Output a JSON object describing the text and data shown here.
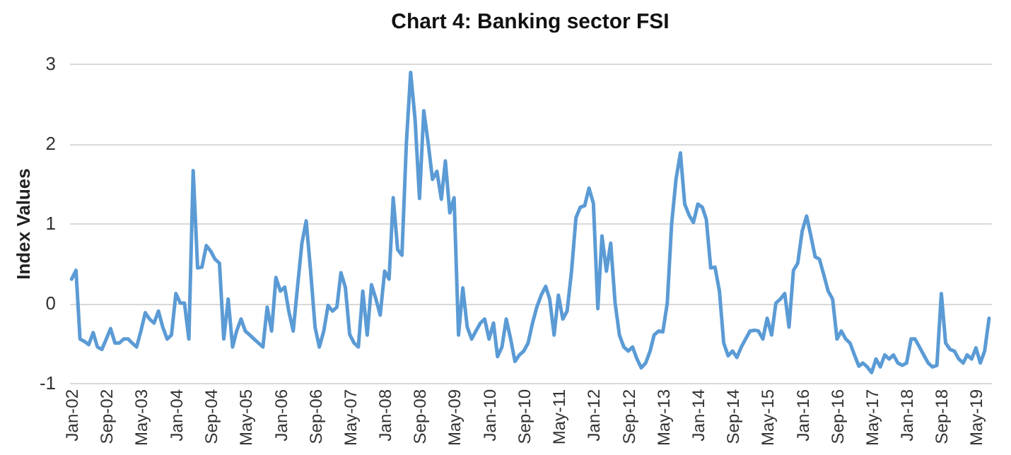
{
  "chart_data": {
    "type": "line",
    "title": "Chart 4: Banking sector FSI",
    "ylabel": "Index Values",
    "x": [
      "2002-01",
      "2002-02",
      "2002-03",
      "2002-04",
      "2002-05",
      "2002-06",
      "2002-07",
      "2002-08",
      "2002-09",
      "2002-10",
      "2002-11",
      "2002-12",
      "2003-01",
      "2003-02",
      "2003-03",
      "2003-04",
      "2003-05",
      "2003-06",
      "2003-07",
      "2003-08",
      "2003-09",
      "2003-10",
      "2003-11",
      "2003-12",
      "2004-01",
      "2004-02",
      "2004-03",
      "2004-04",
      "2004-05",
      "2004-06",
      "2004-07",
      "2004-08",
      "2004-09",
      "2004-10",
      "2004-11",
      "2004-12",
      "2005-01",
      "2005-02",
      "2005-03",
      "2005-04",
      "2005-05",
      "2005-06",
      "2005-07",
      "2005-08",
      "2005-09",
      "2005-10",
      "2005-11",
      "2005-12",
      "2006-01",
      "2006-02",
      "2006-03",
      "2006-04",
      "2006-05",
      "2006-06",
      "2006-07",
      "2006-08",
      "2006-09",
      "2006-10",
      "2006-11",
      "2006-12",
      "2007-01",
      "2007-02",
      "2007-03",
      "2007-04",
      "2007-05",
      "2007-06",
      "2007-07",
      "2007-08",
      "2007-09",
      "2007-10",
      "2007-11",
      "2007-12",
      "2008-01",
      "2008-02",
      "2008-03",
      "2008-04",
      "2008-05",
      "2008-06",
      "2008-07",
      "2008-08",
      "2008-09",
      "2008-10",
      "2008-11",
      "2008-12",
      "2009-01",
      "2009-02",
      "2009-03",
      "2009-04",
      "2009-05",
      "2009-06",
      "2009-07",
      "2009-08",
      "2009-09",
      "2009-10",
      "2009-11",
      "2009-12",
      "2010-01",
      "2010-02",
      "2010-03",
      "2010-04",
      "2010-05",
      "2010-06",
      "2010-07",
      "2010-08",
      "2010-09",
      "2010-10",
      "2010-11",
      "2010-12",
      "2011-01",
      "2011-02",
      "2011-03",
      "2011-04",
      "2011-05",
      "2011-06",
      "2011-07",
      "2011-08",
      "2011-09",
      "2011-10",
      "2011-11",
      "2011-12",
      "2012-01",
      "2012-02",
      "2012-03",
      "2012-04",
      "2012-05",
      "2012-06",
      "2012-07",
      "2012-08",
      "2012-09",
      "2012-10",
      "2012-11",
      "2012-12",
      "2013-01",
      "2013-02",
      "2013-03",
      "2013-04",
      "2013-05",
      "2013-06",
      "2013-07",
      "2013-08",
      "2013-09",
      "2013-10",
      "2013-11",
      "2013-12",
      "2014-01",
      "2014-02",
      "2014-03",
      "2014-04",
      "2014-05",
      "2014-06",
      "2014-07",
      "2014-08",
      "2014-09",
      "2014-10",
      "2014-11",
      "2014-12",
      "2015-01",
      "2015-02",
      "2015-03",
      "2015-04",
      "2015-05",
      "2015-06",
      "2015-07",
      "2015-08",
      "2015-09",
      "2015-10",
      "2015-11",
      "2015-12",
      "2016-01",
      "2016-02",
      "2016-03",
      "2016-04",
      "2016-05",
      "2016-06",
      "2016-07",
      "2016-08",
      "2016-09",
      "2016-10",
      "2016-11",
      "2016-12",
      "2017-01",
      "2017-02",
      "2017-03",
      "2017-04",
      "2017-05",
      "2017-06",
      "2017-07",
      "2017-08",
      "2017-09",
      "2017-10",
      "2017-11",
      "2017-12",
      "2018-01",
      "2018-02",
      "2018-03",
      "2018-04",
      "2018-05",
      "2018-06",
      "2018-07",
      "2018-08",
      "2018-09",
      "2018-10",
      "2018-11",
      "2018-12",
      "2019-01",
      "2019-02",
      "2019-03",
      "2019-04",
      "2019-05",
      "2019-06",
      "2019-07",
      "2019-08"
    ],
    "series": [
      {
        "color": "#5b9bd5",
        "values": [
          0.3,
          0.41,
          -0.45,
          -0.48,
          -0.52,
          -0.37,
          -0.55,
          -0.58,
          -0.45,
          -0.32,
          -0.5,
          -0.5,
          -0.45,
          -0.45,
          -0.5,
          -0.55,
          -0.35,
          -0.12,
          -0.2,
          -0.25,
          -0.1,
          -0.3,
          -0.45,
          -0.4,
          0.12,
          0.0,
          0.0,
          -0.45,
          1.66,
          0.44,
          0.45,
          0.72,
          0.65,
          0.55,
          0.5,
          -0.45,
          0.05,
          -0.55,
          -0.35,
          -0.2,
          -0.35,
          -0.4,
          -0.45,
          -0.5,
          -0.55,
          -0.05,
          -0.35,
          0.32,
          0.15,
          0.2,
          -0.1,
          -0.35,
          0.2,
          0.75,
          1.03,
          0.4,
          -0.3,
          -0.55,
          -0.35,
          -0.03,
          -0.1,
          -0.05,
          0.38,
          0.2,
          -0.39,
          -0.5,
          -0.55,
          0.15,
          -0.4,
          0.23,
          0.05,
          -0.15,
          0.4,
          0.3,
          1.32,
          0.67,
          0.6,
          2.0,
          2.89,
          2.3,
          1.31,
          2.41,
          2.0,
          1.55,
          1.65,
          1.3,
          1.78,
          1.13,
          1.32,
          -0.4,
          0.19,
          -0.3,
          -0.45,
          -0.35,
          -0.25,
          -0.2,
          -0.45,
          -0.25,
          -0.67,
          -0.55,
          -0.2,
          -0.45,
          -0.73,
          -0.65,
          -0.6,
          -0.5,
          -0.25,
          -0.05,
          0.1,
          0.21,
          0.05,
          -0.4,
          0.1,
          -0.2,
          -0.1,
          0.4,
          1.07,
          1.2,
          1.22,
          1.44,
          1.25,
          -0.07,
          0.84,
          0.4,
          0.75,
          0.0,
          -0.4,
          -0.55,
          -0.6,
          -0.55,
          -0.7,
          -0.81,
          -0.75,
          -0.6,
          -0.4,
          -0.35,
          -0.36,
          0.0,
          0.98,
          1.55,
          1.88,
          1.24,
          1.1,
          1.01,
          1.24,
          1.2,
          1.05,
          0.44,
          0.45,
          0.15,
          -0.5,
          -0.66,
          -0.6,
          -0.68,
          -0.55,
          -0.45,
          -0.35,
          -0.34,
          -0.35,
          -0.45,
          -0.19,
          -0.4,
          0.0,
          0.05,
          0.12,
          -0.3,
          0.41,
          0.5,
          0.9,
          1.09,
          0.85,
          0.58,
          0.55,
          0.35,
          0.15,
          0.05,
          -0.45,
          -0.35,
          -0.45,
          -0.5,
          -0.65,
          -0.79,
          -0.75,
          -0.8,
          -0.87,
          -0.7,
          -0.8,
          -0.65,
          -0.7,
          -0.65,
          -0.75,
          -0.78,
          -0.75,
          -0.45,
          -0.45,
          -0.55,
          -0.65,
          -0.75,
          -0.8,
          -0.78,
          0.12,
          -0.5,
          -0.58,
          -0.6,
          -0.7,
          -0.75,
          -0.65,
          -0.7,
          -0.56,
          -0.75,
          -0.6,
          -0.19
        ]
      }
    ],
    "xlim": [
      "2001-12-16",
      "2019-08-16"
    ],
    "xticks": [
      {
        "value": "2002-01",
        "label": "Jan-02"
      },
      {
        "value": "2002-09",
        "label": "Sep-02"
      },
      {
        "value": "2003-05",
        "label": "May-03"
      },
      {
        "value": "2004-01",
        "label": "Jan-04"
      },
      {
        "value": "2004-09",
        "label": "Sep-04"
      },
      {
        "value": "2005-05",
        "label": "May-05"
      },
      {
        "value": "2006-01",
        "label": "Jan-06"
      },
      {
        "value": "2006-09",
        "label": "Sep-06"
      },
      {
        "value": "2007-05",
        "label": "May-07"
      },
      {
        "value": "2008-01",
        "label": "Jan-08"
      },
      {
        "value": "2008-09",
        "label": "Sep-08"
      },
      {
        "value": "2009-05",
        "label": "May-09"
      },
      {
        "value": "2010-01",
        "label": "Jan-10"
      },
      {
        "value": "2010-09",
        "label": "Sep-10"
      },
      {
        "value": "2011-05",
        "label": "May-11"
      },
      {
        "value": "2012-01",
        "label": "Jan-12"
      },
      {
        "value": "2012-09",
        "label": "Sep-12"
      },
      {
        "value": "2013-05",
        "label": "May-13"
      },
      {
        "value": "2014-01",
        "label": "Jan-14"
      },
      {
        "value": "2014-09",
        "label": "Sep-14"
      },
      {
        "value": "2015-05",
        "label": "May-15"
      },
      {
        "value": "2016-01",
        "label": "Jan-16"
      },
      {
        "value": "2016-09",
        "label": "Sep-16"
      },
      {
        "value": "2017-05",
        "label": "May-17"
      },
      {
        "value": "2018-01",
        "label": "Jan-18"
      },
      {
        "value": "2018-09",
        "label": "Sep-18"
      },
      {
        "value": "2019-05",
        "label": "May-19"
      }
    ],
    "ylim": [
      -1,
      3
    ],
    "yticks": [
      -1,
      0,
      1,
      2,
      3
    ],
    "grid": "y",
    "marker": "none",
    "line_style": "solid"
  }
}
